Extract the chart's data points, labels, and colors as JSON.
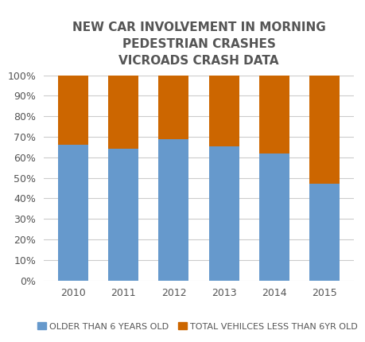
{
  "title": "NEW CAR INVOLVEMENT IN MORNING\nPEDESTRIAN CRASHES\nVICROADS CRASH DATA",
  "categories": [
    "2010",
    "2011",
    "2012",
    "2013",
    "2014",
    "2015"
  ],
  "older_values": [
    0.66,
    0.64,
    0.69,
    0.655,
    0.62,
    0.47
  ],
  "newer_values": [
    0.34,
    0.36,
    0.31,
    0.345,
    0.38,
    0.53
  ],
  "older_color": "#6699CC",
  "newer_color": "#CC6600",
  "older_label": "OLDER THAN 6 YEARS OLD",
  "newer_label": "TOTAL VEHILCES LESS THAN 6YR OLD",
  "ylim": [
    0,
    1.0
  ],
  "ytick_labels": [
    "0%",
    "10%",
    "20%",
    "30%",
    "40%",
    "50%",
    "60%",
    "70%",
    "80%",
    "90%",
    "100%"
  ],
  "ytick_values": [
    0,
    0.1,
    0.2,
    0.3,
    0.4,
    0.5,
    0.6,
    0.7,
    0.8,
    0.9,
    1.0
  ],
  "title_fontsize": 11,
  "tick_fontsize": 9,
  "legend_fontsize": 8,
  "background_color": "#ffffff",
  "grid_color": "#cccccc",
  "bar_width": 0.6
}
